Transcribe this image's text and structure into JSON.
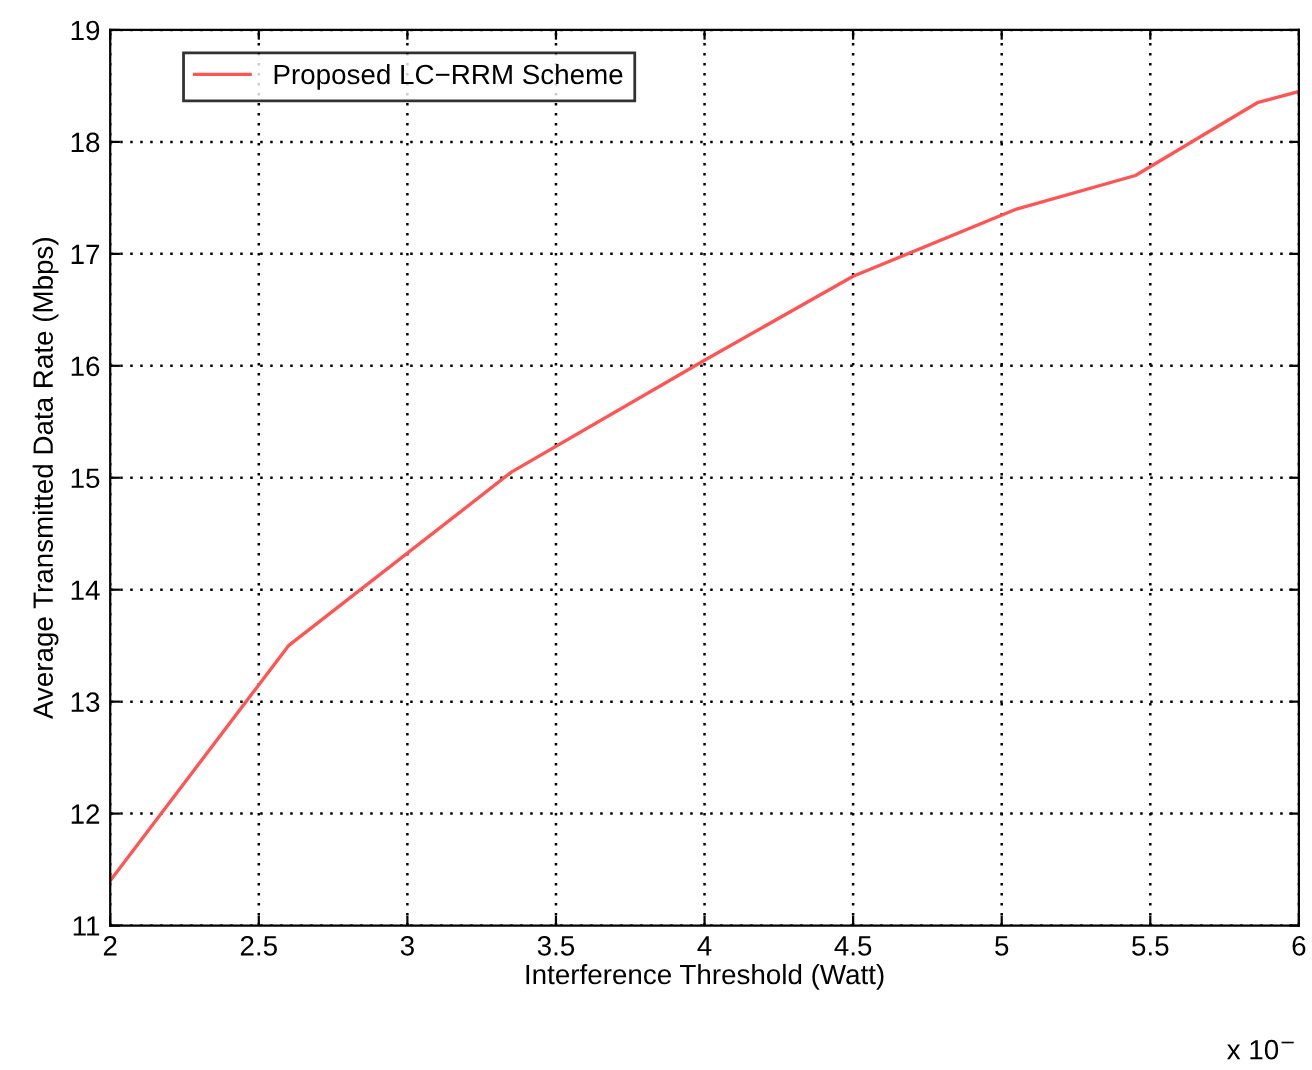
{
  "chart_data": {
    "type": "line",
    "xlabel": "Interference Threshold (Watt)",
    "ylabel": "Average Transmitted Data Rate (Mbps)",
    "x": [
      2,
      2.6,
      3.35,
      4.0,
      4.5,
      5.05,
      5.45,
      5.86,
      6.0
    ],
    "series": [
      {
        "name": "Proposed LC−RRM Scheme",
        "color": "#ff5555",
        "values": [
          11.4,
          13.5,
          15.05,
          16.05,
          16.8,
          17.4,
          17.7,
          18.35,
          18.45
        ]
      }
    ],
    "xlim": [
      2,
      6
    ],
    "xticks": [
      2,
      2.5,
      3,
      3.5,
      4,
      4.5,
      5,
      5.5,
      6
    ],
    "ylim": [
      11,
      19
    ],
    "yticks": [
      11,
      12,
      13,
      14,
      15,
      16,
      17,
      18,
      19
    ],
    "annotations": [
      "x 10$^{−}$"
    ],
    "grid": true,
    "legend": "top left",
    "line_style": "solid",
    "marker": "none"
  }
}
